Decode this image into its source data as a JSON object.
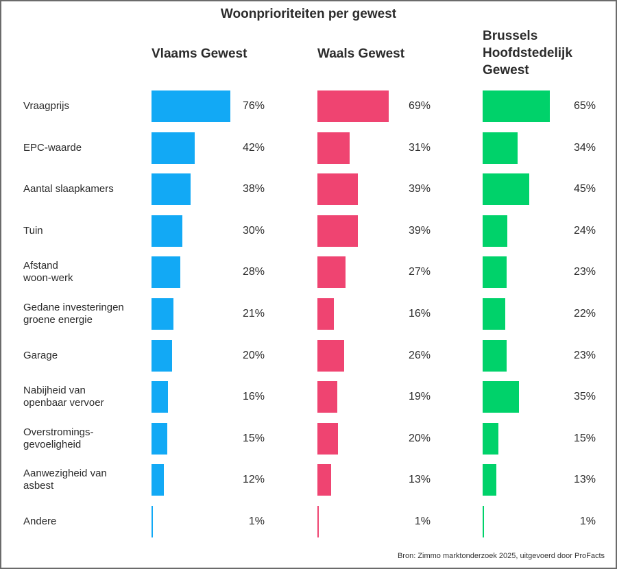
{
  "chart_data": {
    "type": "bar",
    "orientation": "horizontal",
    "title": "Woonprioriteiten per gewest",
    "categories": [
      "Vraagprijs",
      "EPC-waarde",
      "Aantal slaapkamers",
      "Tuin",
      "Afstand\nwoon-werk",
      "Gedane investeringen\ngroene energie",
      "Garage",
      "Nabijheid van\nopenbaar vervoer",
      "Overstromings-\ngevoeligheid",
      "Aanwezigheid van\nasbest",
      "Andere"
    ],
    "series": [
      {
        "name": "Vlaams Gewest",
        "color": "#12a9f5",
        "values": [
          76,
          42,
          38,
          30,
          28,
          21,
          20,
          16,
          15,
          12,
          1
        ]
      },
      {
        "name": "Waals Gewest",
        "color": "#ef4471",
        "values": [
          69,
          31,
          39,
          39,
          27,
          16,
          26,
          19,
          20,
          13,
          1
        ]
      },
      {
        "name": "Brussels Hoofdstedelijk Gewest",
        "color": "#00d26a",
        "values": [
          65,
          34,
          45,
          24,
          23,
          22,
          23,
          35,
          15,
          13,
          1
        ]
      }
    ],
    "value_suffix": "%",
    "xlim": [
      0,
      100
    ],
    "grid": false,
    "legend": "none",
    "source": "Bron: Zimmo marktonderzoek 2025, uitgevoerd door ProFacts"
  }
}
